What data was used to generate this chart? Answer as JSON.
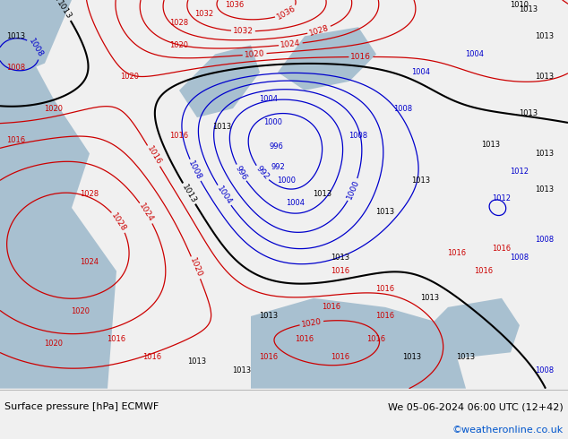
{
  "title_left": "Surface pressure [hPa] ECMWF",
  "title_right": "We 05-06-2024 06:00 UTC (12+42)",
  "credit": "©weatheronline.co.uk",
  "fig_width": 6.34,
  "fig_height": 4.9,
  "dpi": 100,
  "bottom_bar_color": "#f0f0f0",
  "label_fontsize": 8,
  "credit_fontsize": 8,
  "credit_color": "#0055cc",
  "map_bg": "#c8d8a8",
  "sea_color": "#a8c0d0",
  "border_top_color": "#bbbbbb"
}
